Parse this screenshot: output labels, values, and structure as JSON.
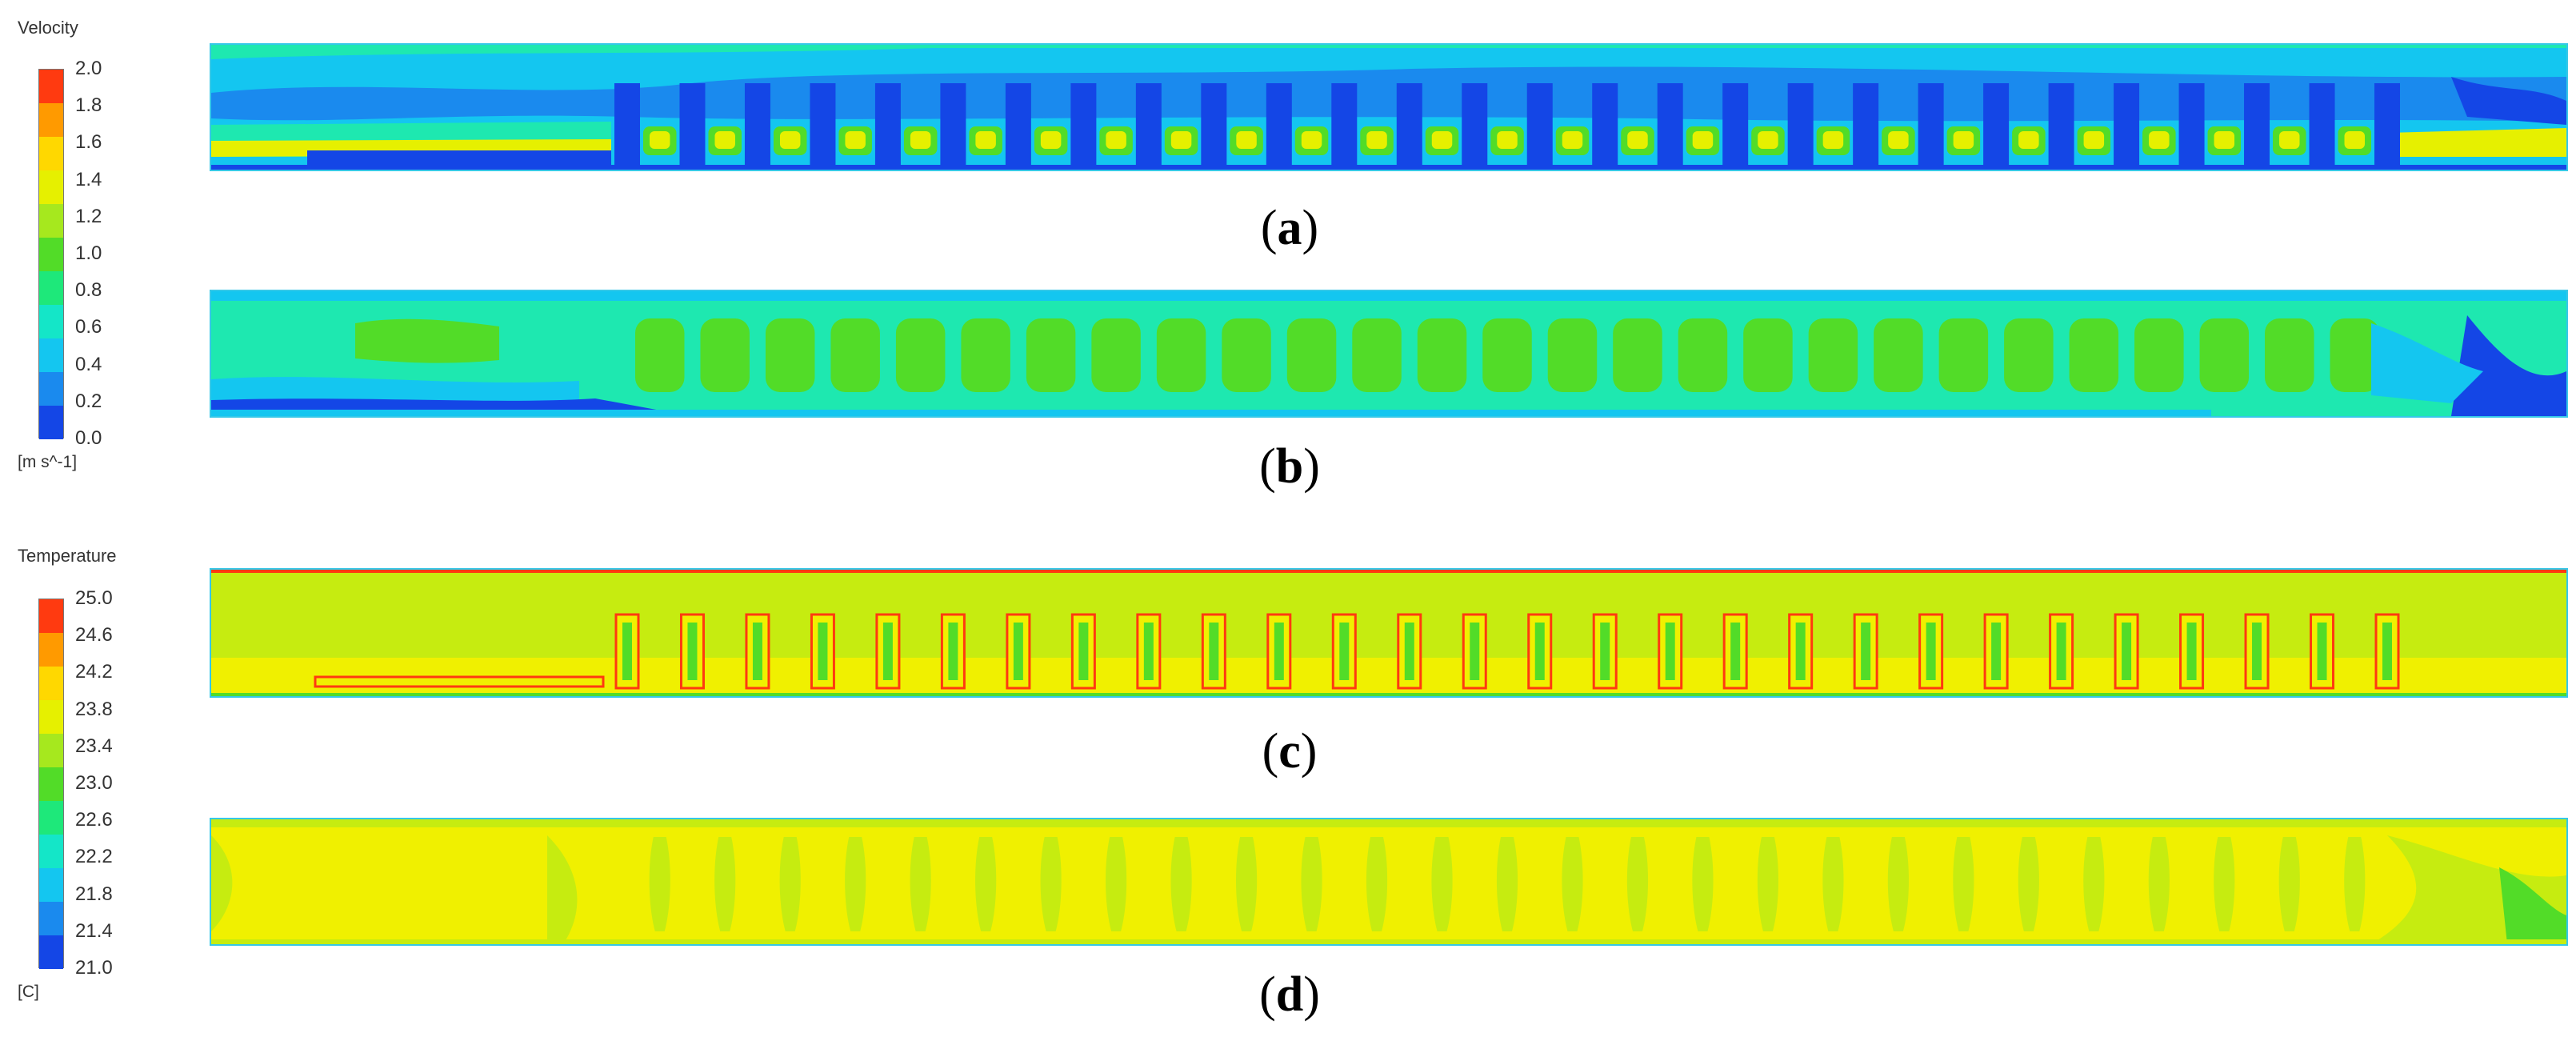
{
  "velocity_legend": {
    "title": "Velocity",
    "unit": "[m s^-1]",
    "ticks": [
      "2.0",
      "1.8",
      "1.6",
      "1.4",
      "1.2",
      "1.0",
      "0.8",
      "0.6",
      "0.4",
      "0.2",
      "0.0"
    ],
    "colors": [
      "#ff3a10",
      "#ff9a00",
      "#ffd800",
      "#e6f000",
      "#a6e81e",
      "#52dc28",
      "#1ee87a",
      "#14e6c8",
      "#14c6f0",
      "#1a8aee",
      "#1446e6"
    ]
  },
  "temperature_legend": {
    "title": "Temperature",
    "unit": "[C]",
    "ticks": [
      "25.0",
      "24.6",
      "24.2",
      "23.8",
      "23.4",
      "23.0",
      "22.6",
      "22.2",
      "21.8",
      "21.4",
      "21.0"
    ],
    "colors": [
      "#ff3a10",
      "#ff9a00",
      "#ffd800",
      "#e6f000",
      "#a6e81e",
      "#52dc28",
      "#1ee87a",
      "#14e6c8",
      "#14c6f0",
      "#1a8aee",
      "#1446e6"
    ]
  },
  "panels": [
    {
      "open": "(",
      "letter": "a",
      "close": ")"
    },
    {
      "open": "(",
      "letter": "b",
      "close": ")"
    },
    {
      "open": "(",
      "letter": "c",
      "close": ")"
    },
    {
      "open": "(",
      "letter": "d",
      "close": ")"
    }
  ],
  "colors": {
    "velocity_low": "#1446e6",
    "velocity_mid_low": "#1a8aee",
    "velocity_mid": "#14c6f0",
    "velocity_teal": "#1ee8b0",
    "velocity_green": "#52dc28",
    "velocity_yellow": "#e6f000",
    "temp_base": "#c6ec10",
    "temp_warm": "#f0f000",
    "temp_green": "#52dc28",
    "temp_hot": "#ff3a10",
    "frame": "#35c8e8"
  }
}
